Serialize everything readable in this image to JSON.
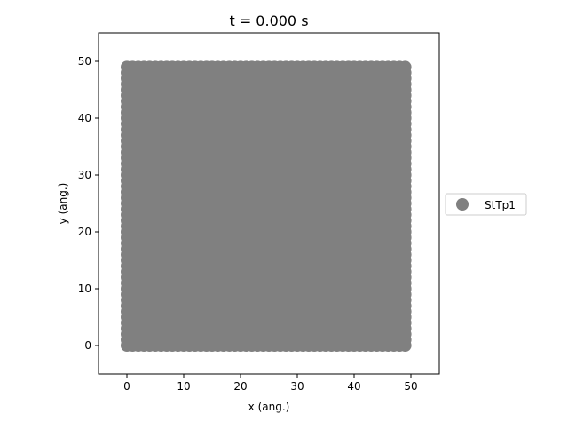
{
  "chart_data": {
    "type": "scatter",
    "title": "t = 0.000 s",
    "xlabel": "x (ang.)",
    "ylabel": "y (ang.)",
    "xlim": [
      -5,
      55
    ],
    "ylim": [
      -5,
      55
    ],
    "xticks": [
      0,
      10,
      20,
      30,
      40,
      50
    ],
    "yticks": [
      0,
      10,
      20,
      30,
      40,
      50
    ],
    "grid": false,
    "legend_placement": "center-right outside",
    "series": [
      {
        "name": "StTp1",
        "color": "#808080",
        "points_grid": {
          "x_start": 0,
          "x_stop": 49,
          "y_start": 0,
          "y_stop": 49,
          "step": 1
        }
      }
    ]
  }
}
